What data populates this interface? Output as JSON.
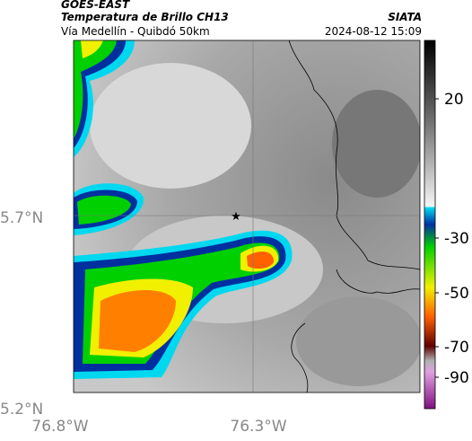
{
  "header": {
    "title": "GOES-EAST",
    "subtitle": "Temperatura de Brillo CH13",
    "source": "SIATA",
    "location": "Vía Medellín - Quibdó 50km",
    "datetime": "2024-08-12 15:09"
  },
  "axes": {
    "lat_labels": [
      "5.7°N",
      "5.2°N"
    ],
    "lon_labels": [
      "76.8°W",
      "76.3°W"
    ]
  },
  "colorbar": {
    "ticks": [
      20,
      -30,
      -50,
      -70,
      -90
    ]
  }
}
